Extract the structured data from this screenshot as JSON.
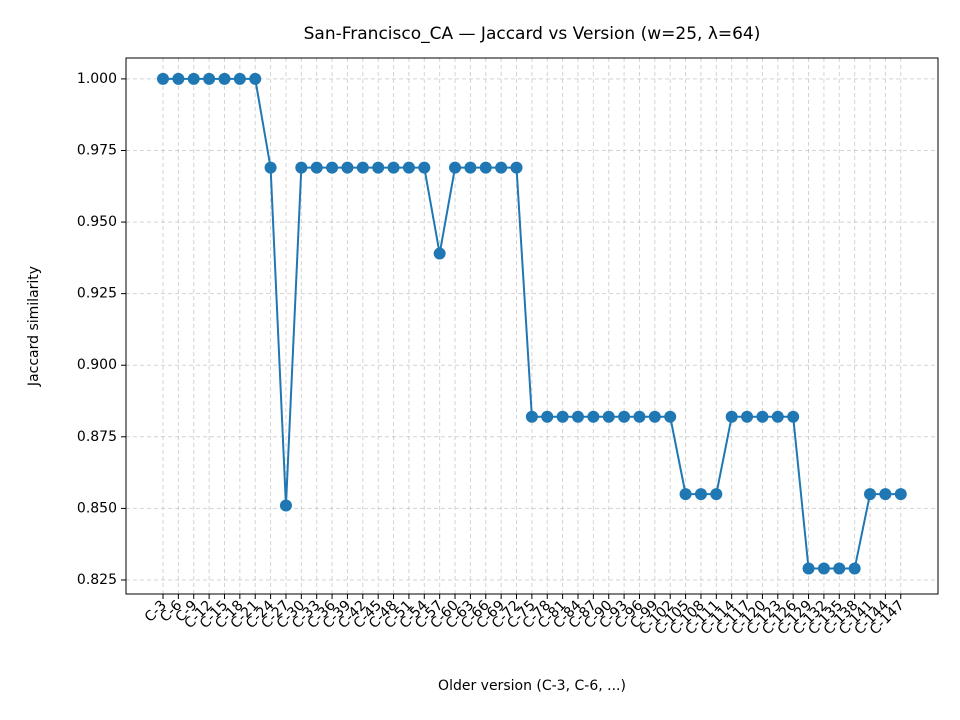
{
  "chart_data": {
    "type": "line",
    "title": "San-Francisco_CA — Jaccard vs Version (w=25, λ=64)",
    "x_label": "Older version (C-3, C-6, ...)",
    "y_label": "Jaccard similarity",
    "categories": [
      "C-3",
      "C-6",
      "C-9",
      "C-12",
      "C-15",
      "C-18",
      "C-21",
      "C-24",
      "C-27",
      "C-30",
      "C-33",
      "C-36",
      "C-39",
      "C-42",
      "C-45",
      "C-48",
      "C-51",
      "C-54",
      "C-57",
      "C-60",
      "C-63",
      "C-66",
      "C-69",
      "C-72",
      "C-75",
      "C-78",
      "C-81",
      "C-84",
      "C-87",
      "C-90",
      "C-93",
      "C-96",
      "C-99",
      "C-102",
      "C-105",
      "C-108",
      "C-111",
      "C-114",
      "C-117",
      "C-120",
      "C-123",
      "C-126",
      "C-129",
      "C-132",
      "C-135",
      "C-138",
      "C-141",
      "C-144",
      "C-147"
    ],
    "series": [
      {
        "name": "Jaccard similarity",
        "color": "#1f77b4",
        "values": [
          1.0,
          1.0,
          1.0,
          1.0,
          1.0,
          1.0,
          1.0,
          0.969,
          0.851,
          0.969,
          0.969,
          0.969,
          0.969,
          0.969,
          0.969,
          0.969,
          0.969,
          0.969,
          0.939,
          0.969,
          0.969,
          0.969,
          0.969,
          0.969,
          0.882,
          0.882,
          0.882,
          0.882,
          0.882,
          0.882,
          0.882,
          0.882,
          0.882,
          0.882,
          0.855,
          0.855,
          0.855,
          0.882,
          0.882,
          0.882,
          0.882,
          0.882,
          0.829,
          0.829,
          0.829,
          0.829,
          0.855,
          0.855,
          0.855
        ]
      }
    ],
    "ylim": [
      0.8201,
      1.0073
    ],
    "yticks": [
      0.825,
      {
        "value": 0.85,
        "label": "0.850"
      },
      0.875,
      {
        "value": 0.9,
        "label": "0.900"
      },
      0.925,
      {
        "value": 0.95,
        "label": "0.950"
      },
      0.975,
      {
        "value": 1.0,
        "label": "1.000"
      }
    ],
    "grid": true
  }
}
